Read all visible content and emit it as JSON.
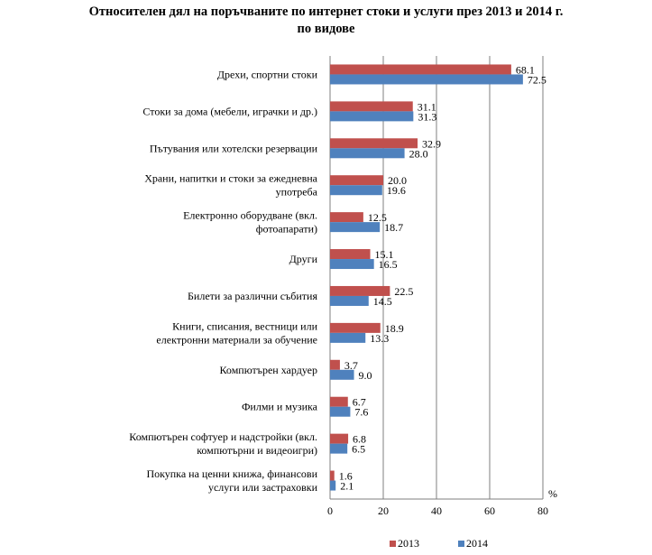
{
  "chart_data": {
    "type": "bar",
    "orientation": "horizontal",
    "title_line1": "Относителен дял на поръчваните по интернет стоки и услуги през 2013 и 2014 г.",
    "title_line2": "по видове",
    "unit_label": "%",
    "xlim": [
      0,
      80
    ],
    "x_ticks": [
      "0",
      "20",
      "40",
      "60",
      "80"
    ],
    "grid": true,
    "legend_position": "bottom",
    "categories": [
      [
        "Дрехи, спортни стоки"
      ],
      [
        "Стоки за дома (мебели, играчки и др.)"
      ],
      [
        "Пътувания или хотелски резервации"
      ],
      [
        "Храни, напитки и стоки за ежедневна",
        "употреба"
      ],
      [
        "Електронно оборудване (вкл.",
        "фотоапарати)"
      ],
      [
        "Други"
      ],
      [
        "Билети за различни събития"
      ],
      [
        "Книги, списания, вестници или",
        "електронни материали за обучение"
      ],
      [
        "Компютърен хардуер"
      ],
      [
        "Филми и музика"
      ],
      [
        "Компютърен софтуер и надстройки (вкл.",
        "компютърни и видеоигри)"
      ],
      [
        "Покупка на ценни книжа, финансови",
        "услуги или застраховки"
      ]
    ],
    "series": [
      {
        "name": "2013",
        "color": "#c0504d",
        "values": [
          68.1,
          31.1,
          32.9,
          20.0,
          12.5,
          15.1,
          22.5,
          18.9,
          3.7,
          6.7,
          6.8,
          1.6
        ],
        "labels": [
          "68.1",
          "31.1",
          "32.9",
          "20.0",
          "12.5",
          "15.1",
          "22.5",
          "18.9",
          "3.7",
          "6.7",
          "6.8",
          "1.6"
        ]
      },
      {
        "name": "2014",
        "color": "#4f81bd",
        "values": [
          72.5,
          31.3,
          28.0,
          19.6,
          18.7,
          16.5,
          14.5,
          13.3,
          9.0,
          7.6,
          6.5,
          2.1
        ],
        "labels": [
          "72.5",
          "31.3",
          "28.0",
          "19.6",
          "18.7",
          "16.5",
          "14.5",
          "13.3",
          "9.0",
          "7.6",
          "6.5",
          "2.1"
        ]
      }
    ]
  }
}
